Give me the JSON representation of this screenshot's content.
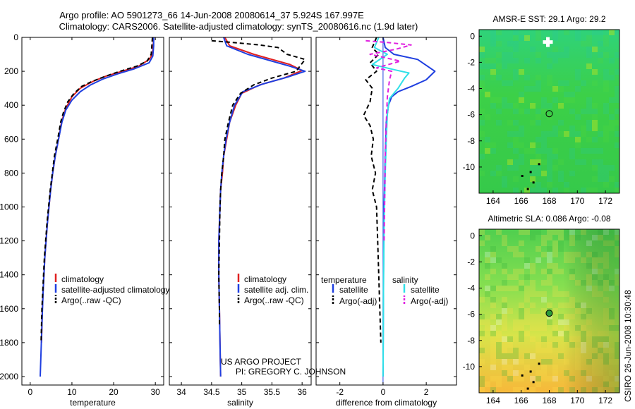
{
  "header": {
    "line1": "Argo profile: AO 5901273_66 14-Jun-2008 20080614_37 5.924S 167.997E",
    "line2": "Climatology: CARS2006. Satellite-adjusted climatology: synTS_20080616.nc (1.9d later)"
  },
  "credits": {
    "project": "US ARGO PROJECT",
    "pi": "PI: GREGORY C. JOHNSON",
    "stamp": "CSIRO 26-Jun-2008 10:30:48"
  },
  "colors": {
    "climatology": "#e02020",
    "satellite": "#1f3fe0",
    "argo": "#000000",
    "salinity_satellite": "#30e0e8",
    "salinity_argo": "#e020e0"
  },
  "chart_data": [
    {
      "id": "temperature",
      "type": "line",
      "xlabel": "temperature",
      "ylabel": "",
      "xlim": [
        -2,
        32
      ],
      "ylim": [
        2050,
        0
      ],
      "xticks": [
        0,
        10,
        20,
        30
      ],
      "yticks": [
        0,
        200,
        400,
        600,
        800,
        1000,
        1200,
        1400,
        1600,
        1800,
        2000
      ],
      "legend": {
        "placement": "bottom-right",
        "entries": [
          {
            "label": "climatology",
            "color": "#e02020",
            "dash": ""
          },
          {
            "label": "satellite-adjusted climatology",
            "color": "#1f3fe0",
            "dash": ""
          },
          {
            "label": "Argo(..raw -QC)",
            "color": "#000000",
            "dash": "6,4"
          }
        ]
      },
      "series": [
        {
          "name": "climatology",
          "color": "#e02020",
          "dash": "",
          "points": [
            [
              29.6,
              0
            ],
            [
              29.5,
              50
            ],
            [
              29.3,
              100
            ],
            [
              28.5,
              130
            ],
            [
              26,
              170
            ],
            [
              22,
              200
            ],
            [
              18,
              230
            ],
            [
              15,
              260
            ],
            [
              12,
              300
            ],
            [
              10,
              350
            ],
            [
              8.5,
              420
            ],
            [
              7.5,
              500
            ],
            [
              6.8,
              600
            ],
            [
              6,
              700
            ],
            [
              5.4,
              800
            ],
            [
              4.9,
              900
            ],
            [
              4.5,
              1000
            ],
            [
              4.1,
              1100
            ],
            [
              3.8,
              1200
            ],
            [
              3.5,
              1300
            ],
            [
              3.3,
              1400
            ],
            [
              3.1,
              1500
            ],
            [
              2.9,
              1600
            ],
            [
              2.8,
              1700
            ],
            [
              2.7,
              1800
            ]
          ]
        },
        {
          "name": "satellite-adjusted climatology",
          "color": "#1f3fe0",
          "dash": "",
          "points": [
            [
              29.6,
              0
            ],
            [
              29.6,
              50
            ],
            [
              29.4,
              110
            ],
            [
              28.5,
              150
            ],
            [
              25,
              185
            ],
            [
              21,
              215
            ],
            [
              17.5,
              245
            ],
            [
              14.5,
              280
            ],
            [
              12,
              320
            ],
            [
              10,
              370
            ],
            [
              8.5,
              430
            ],
            [
              7.6,
              500
            ],
            [
              6.8,
              600
            ],
            [
              6,
              700
            ],
            [
              5.4,
              800
            ],
            [
              4.9,
              900
            ],
            [
              4.5,
              1000
            ],
            [
              4.1,
              1100
            ],
            [
              3.8,
              1200
            ],
            [
              3.5,
              1300
            ],
            [
              3.3,
              1400
            ],
            [
              3.1,
              1500
            ],
            [
              2.8,
              1700
            ],
            [
              2.6,
              1850
            ],
            [
              2.4,
              2000
            ]
          ]
        },
        {
          "name": "Argo(..raw -QC)",
          "color": "#000000",
          "dash": "6,4",
          "points": [
            [
              29.3,
              0
            ],
            [
              29.2,
              40
            ],
            [
              29,
              100
            ],
            [
              28,
              140
            ],
            [
              25.5,
              170
            ],
            [
              21.5,
              200
            ],
            [
              18,
              230
            ],
            [
              14.8,
              260
            ],
            [
              12.3,
              290
            ],
            [
              10.5,
              330
            ],
            [
              9,
              380
            ],
            [
              8,
              440
            ],
            [
              7.3,
              500
            ],
            [
              6.6,
              600
            ],
            [
              5.8,
              700
            ],
            [
              5.3,
              800
            ],
            [
              4.8,
              900
            ],
            [
              4.4,
              1000
            ],
            [
              4,
              1100
            ],
            [
              3.7,
              1200
            ],
            [
              3.4,
              1300
            ],
            [
              3.2,
              1400
            ],
            [
              3,
              1500
            ],
            [
              2.8,
              1600
            ],
            [
              2.7,
              1700
            ],
            [
              2.6,
              1800
            ]
          ]
        }
      ]
    },
    {
      "id": "salinity",
      "type": "line",
      "xlabel": "salinity",
      "ylabel": "",
      "xlim": [
        33.8,
        36.15
      ],
      "ylim": [
        2050,
        0
      ],
      "xticks": [
        34,
        34.5,
        35,
        35.5,
        36
      ],
      "legend": {
        "placement": "bottom-right",
        "entries": [
          {
            "label": "climatology",
            "color": "#e02020",
            "dash": ""
          },
          {
            "label": "satellite adj. clim.",
            "color": "#1f3fe0",
            "dash": ""
          },
          {
            "label": "Argo(..raw -QC)",
            "color": "#000000",
            "dash": "6,4"
          }
        ]
      },
      "series": [
        {
          "name": "climatology",
          "color": "#e02020",
          "dash": "",
          "points": [
            [
              34.72,
              0
            ],
            [
              34.8,
              50
            ],
            [
              35.2,
              100
            ],
            [
              35.8,
              160
            ],
            [
              36,
              195
            ],
            [
              35.7,
              240
            ],
            [
              35.3,
              280
            ],
            [
              35,
              330
            ],
            [
              34.9,
              400
            ],
            [
              34.8,
              500
            ],
            [
              34.75,
              600
            ],
            [
              34.7,
              700
            ],
            [
              34.68,
              800
            ],
            [
              34.65,
              900
            ],
            [
              34.64,
              1000
            ],
            [
              34.62,
              1200
            ],
            [
              34.62,
              1400
            ],
            [
              34.63,
              1600
            ],
            [
              34.64,
              1800
            ],
            [
              34.65,
              2000
            ]
          ]
        },
        {
          "name": "satellite adj. clim.",
          "color": "#1f3fe0",
          "dash": "",
          "points": [
            [
              34.7,
              0
            ],
            [
              34.75,
              50
            ],
            [
              35.1,
              100
            ],
            [
              35.8,
              170
            ],
            [
              36.05,
              200
            ],
            [
              35.75,
              235
            ],
            [
              35.35,
              275
            ],
            [
              35.02,
              320
            ],
            [
              34.88,
              400
            ],
            [
              34.8,
              500
            ],
            [
              34.74,
              600
            ],
            [
              34.7,
              700
            ],
            [
              34.67,
              800
            ],
            [
              34.65,
              900
            ],
            [
              34.64,
              1000
            ],
            [
              34.62,
              1200
            ],
            [
              34.62,
              1400
            ],
            [
              34.63,
              1600
            ],
            [
              34.64,
              1800
            ],
            [
              34.65,
              2000
            ]
          ]
        },
        {
          "name": "Argo(..raw -QC)",
          "color": "#000000",
          "dash": "6,4",
          "points": [
            [
              34.5,
              20
            ],
            [
              34.85,
              30
            ],
            [
              35.3,
              45
            ],
            [
              35.6,
              60
            ],
            [
              35.75,
              100
            ],
            [
              36.05,
              130
            ],
            [
              35.9,
              200
            ],
            [
              35.5,
              240
            ],
            [
              35.2,
              280
            ],
            [
              34.98,
              330
            ],
            [
              34.85,
              400
            ],
            [
              34.78,
              500
            ],
            [
              34.72,
              600
            ],
            [
              34.7,
              700
            ],
            [
              34.67,
              800
            ],
            [
              34.65,
              900
            ],
            [
              34.64,
              1000
            ],
            [
              34.63,
              1200
            ],
            [
              34.62,
              1400
            ],
            [
              34.63,
              1600
            ],
            [
              34.63,
              1700
            ]
          ]
        }
      ]
    },
    {
      "id": "difference",
      "type": "line",
      "xlabel": "difference from climatology",
      "ylabel": "",
      "xlim": [
        -3.1,
        3.4
      ],
      "ylim": [
        2050,
        0
      ],
      "xticks": [
        -2,
        0,
        2
      ],
      "legend": {
        "placement": "bottom",
        "entries": [
          {
            "group": "temperature",
            "label": "satellite",
            "color": "#1f3fe0",
            "dash": ""
          },
          {
            "group": "temperature",
            "label": "Argo(-adj)",
            "color": "#000000",
            "dash": "6,4"
          },
          {
            "group": "salinity",
            "label": "satellite",
            "color": "#30e0e8",
            "dash": ""
          },
          {
            "group": "salinity",
            "label": "Argo(-adj)",
            "color": "#e020e0",
            "dash": "6,4"
          }
        ]
      },
      "legend_titles": {
        "temperature": "temperature",
        "salinity": "salinity"
      },
      "series": [
        {
          "name": "temperature satellite",
          "color": "#1f3fe0",
          "dash": "",
          "points": [
            [
              0,
              0
            ],
            [
              0.1,
              60
            ],
            [
              0.5,
              100
            ],
            [
              1.6,
              130
            ],
            [
              2.4,
              200
            ],
            [
              2,
              250
            ],
            [
              1.3,
              290
            ],
            [
              0.7,
              320
            ],
            [
              0.4,
              350
            ],
            [
              0.25,
              400
            ],
            [
              0.15,
              500
            ],
            [
              0.1,
              700
            ],
            [
              0.05,
              1000
            ],
            [
              0.02,
              1400
            ],
            [
              0,
              2000
            ]
          ]
        },
        {
          "name": "temperature Argo(-adj)",
          "color": "#000000",
          "dash": "6,4",
          "points": [
            [
              -0.3,
              0
            ],
            [
              -0.5,
              60
            ],
            [
              -0.2,
              100
            ],
            [
              -0.6,
              150
            ],
            [
              -0.3,
              200
            ],
            [
              -0.8,
              250
            ],
            [
              -0.5,
              300
            ],
            [
              -0.6,
              380
            ],
            [
              -0.9,
              460
            ],
            [
              -0.6,
              520
            ],
            [
              -0.45,
              600
            ],
            [
              -0.55,
              700
            ],
            [
              -0.35,
              800
            ],
            [
              -0.5,
              900
            ],
            [
              -0.3,
              1000
            ],
            [
              -0.25,
              1200
            ],
            [
              -0.2,
              1400
            ],
            [
              -0.15,
              1600
            ],
            [
              -0.1,
              1800
            ]
          ]
        },
        {
          "name": "salinity satellite",
          "color": "#30e0e8",
          "dash": "",
          "points": [
            [
              -0.2,
              0
            ],
            [
              -0.4,
              60
            ],
            [
              0.2,
              100
            ],
            [
              -0.5,
              160
            ],
            [
              0.5,
              190
            ],
            [
              1.2,
              210
            ],
            [
              1,
              240
            ],
            [
              0.7,
              300
            ],
            [
              0.3,
              360
            ],
            [
              0.2,
              450
            ],
            [
              0.15,
              600
            ],
            [
              0.1,
              800
            ],
            [
              0.05,
              1100
            ],
            [
              0.02,
              1500
            ],
            [
              0,
              2000
            ]
          ]
        },
        {
          "name": "salinity Argo(-adj)",
          "color": "#e020e0",
          "dash": "6,4",
          "points": [
            [
              -0.8,
              20
            ],
            [
              0.2,
              30
            ],
            [
              1.3,
              45
            ],
            [
              0.6,
              70
            ],
            [
              -0.6,
              100
            ],
            [
              0.8,
              140
            ],
            [
              -0.3,
              180
            ],
            [
              0.4,
              200
            ],
            [
              0.3,
              250
            ],
            [
              0.2,
              350
            ],
            [
              0.15,
              500
            ],
            [
              0.1,
              700
            ],
            [
              0.08,
              900
            ],
            [
              0.05,
              1200
            ]
          ]
        }
      ]
    },
    {
      "id": "amsr-sst",
      "type": "heatmap",
      "title": "AMSR-E SST: 29.1 Argo: 29.2",
      "xlim": [
        163,
        173
      ],
      "ylim": [
        -12,
        0.5
      ],
      "xticks": [
        164,
        166,
        168,
        170,
        172
      ],
      "yticks": [
        0,
        -2,
        -4,
        -6,
        -8,
        -10
      ],
      "argo_position": [
        167.997,
        -5.924
      ]
    },
    {
      "id": "altimetric-sla",
      "type": "heatmap",
      "title": "Altimetric SLA: 0.086 Argo: -0.08",
      "xlim": [
        163,
        173
      ],
      "ylim": [
        -12,
        0.5
      ],
      "xticks": [
        164,
        166,
        168,
        170,
        172
      ],
      "yticks": [
        0,
        -2,
        -4,
        -6,
        -8,
        -10
      ],
      "argo_position": [
        167.997,
        -5.924
      ]
    }
  ]
}
